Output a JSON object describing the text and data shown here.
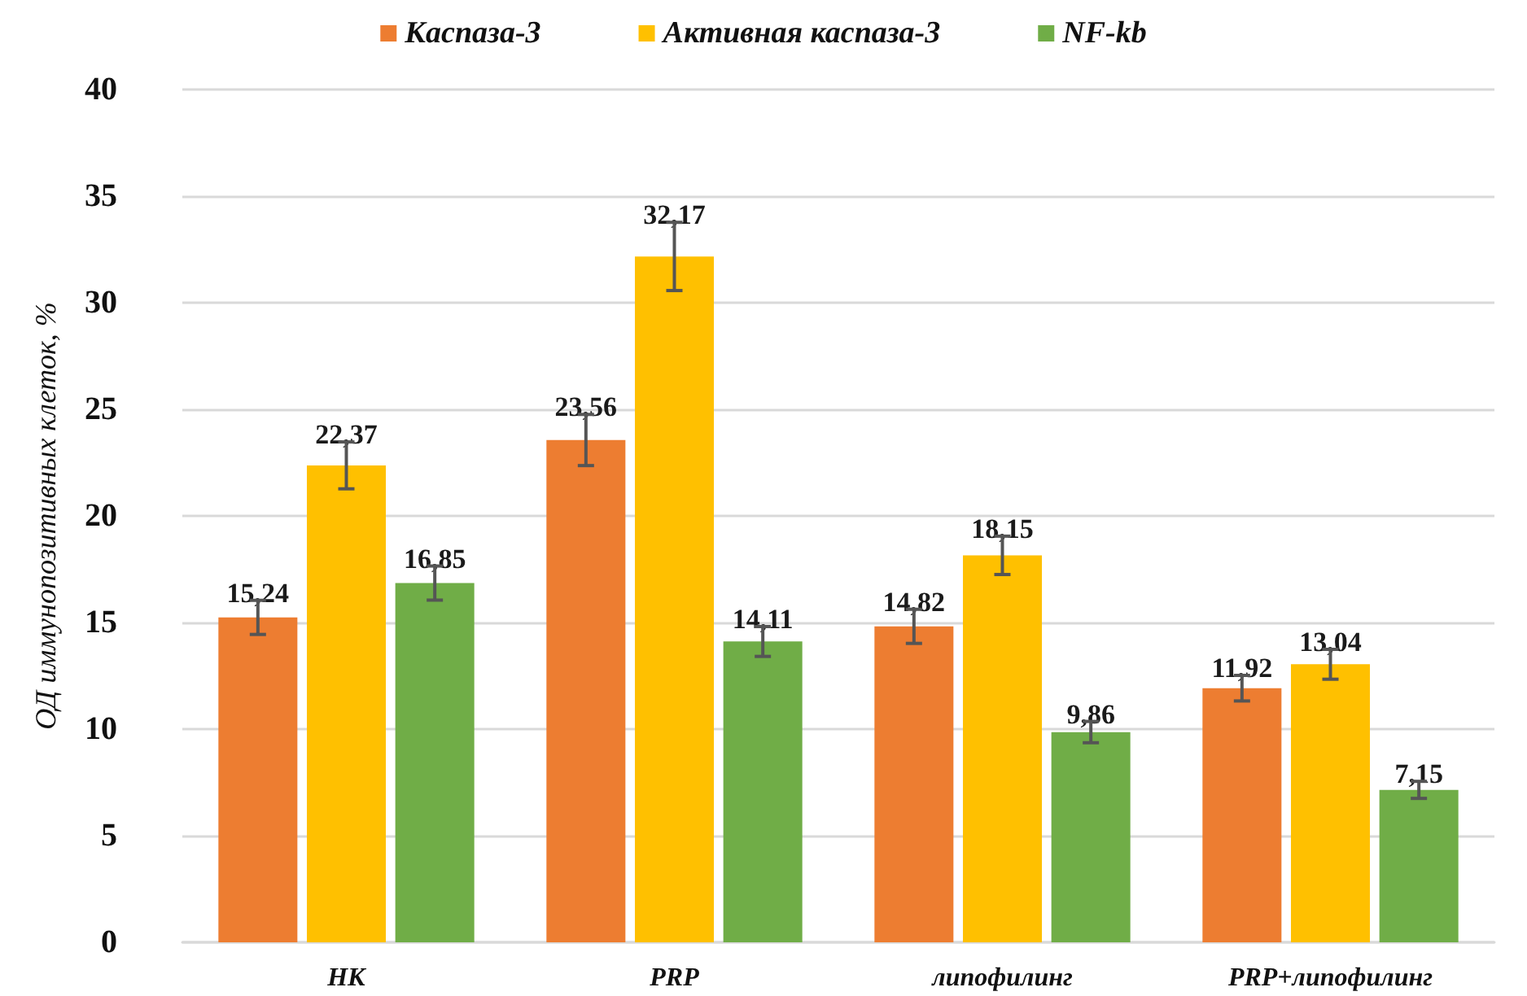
{
  "chart_data": {
    "type": "bar",
    "ylabel": "ОД иммунопозитивных клеток, %",
    "categories": [
      "НК",
      "PRP",
      "липофилинг",
      "PRP+липофилинг"
    ],
    "series": [
      {
        "name": "Каспаза-3",
        "color": "#ed7d31",
        "values": [
          15.24,
          23.56,
          14.82,
          11.92
        ],
        "errors": [
          0.8,
          1.2,
          0.8,
          0.6
        ],
        "value_labels": [
          "15,24",
          "23,56",
          "14,82",
          "11,92"
        ]
      },
      {
        "name": "Активная каспаза-3",
        "color": "#ffc000",
        "values": [
          22.37,
          32.17,
          18.15,
          13.04
        ],
        "errors": [
          1.1,
          1.6,
          0.9,
          0.7
        ],
        "value_labels": [
          "22,37",
          "32,17",
          "18,15",
          "13,04"
        ]
      },
      {
        "name": "NF-kb",
        "color": "#70ad47",
        "values": [
          16.85,
          14.11,
          9.86,
          7.15
        ],
        "errors": [
          0.8,
          0.7,
          0.5,
          0.4
        ],
        "value_labels": [
          "16,85",
          "14,11",
          "9,86",
          "7,15"
        ]
      }
    ],
    "ylim": [
      0,
      40
    ],
    "yticks": [
      0,
      5,
      10,
      15,
      20,
      25,
      30,
      35,
      40
    ],
    "grid": "y",
    "legend": "top"
  }
}
